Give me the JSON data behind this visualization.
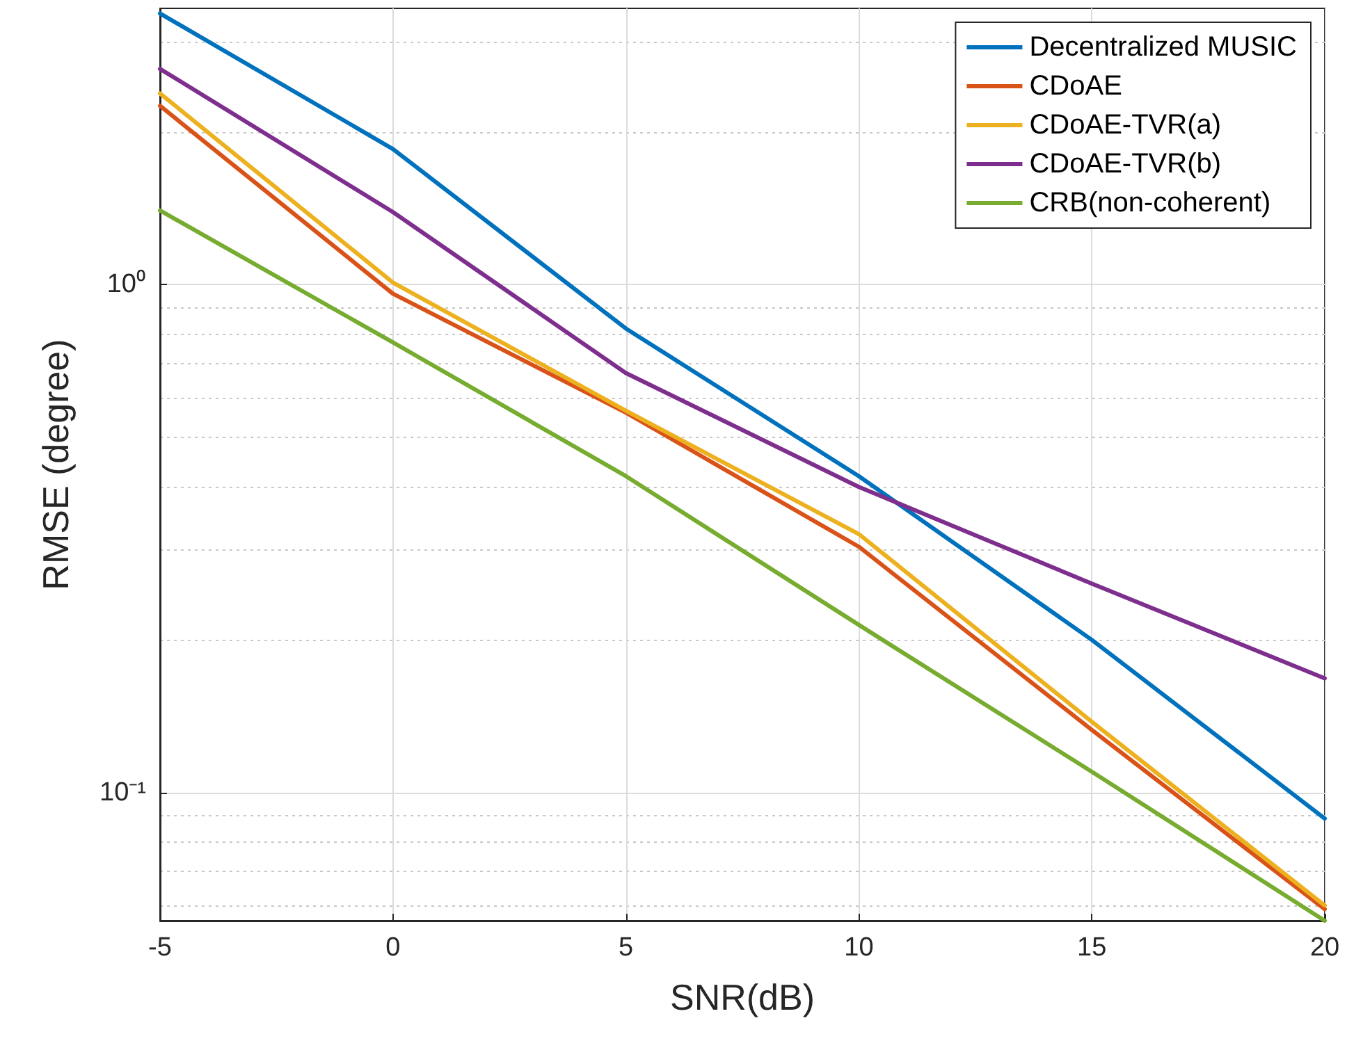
{
  "chart_data": {
    "type": "line",
    "xlabel": "SNR(dB)",
    "ylabel": "RMSE (degree)",
    "log": "y",
    "grid": true,
    "legend": "top right",
    "marker": "none",
    "line_style": "solid",
    "x": [
      -5,
      0,
      5,
      10,
      15,
      20
    ],
    "xlim": [
      -5,
      20
    ],
    "xticks": [
      -5,
      0,
      5,
      10,
      15,
      20
    ],
    "ylim": [
      0.056,
      3.5
    ],
    "yticks": [
      {
        "value": 0.06,
        "label": null
      },
      {
        "value": 0.07,
        "label": null
      },
      {
        "value": 0.08,
        "label": null
      },
      {
        "value": 0.09,
        "label": null
      },
      {
        "value": 0.1,
        "label": "10⁻¹"
      },
      {
        "value": 0.2,
        "label": null
      },
      {
        "value": 0.3,
        "label": null
      },
      {
        "value": 0.4,
        "label": null
      },
      {
        "value": 0.5,
        "label": null
      },
      {
        "value": 0.6,
        "label": null
      },
      {
        "value": 0.7,
        "label": null
      },
      {
        "value": 0.8,
        "label": null
      },
      {
        "value": 0.9,
        "label": null
      },
      {
        "value": 1,
        "label": "10⁰"
      },
      {
        "value": 2,
        "label": null
      },
      {
        "value": 3,
        "label": null
      }
    ],
    "series": [
      {
        "name": "Decentralized MUSIC",
        "color": "#0072bd",
        "values": [
          3.42,
          1.85,
          0.82,
          0.42,
          0.2,
          0.089
        ]
      },
      {
        "name": "CDoAE",
        "color": "#d95319",
        "values": [
          2.25,
          0.96,
          0.56,
          0.305,
          0.133,
          0.059
        ]
      },
      {
        "name": "CDoAE-TVR(a)",
        "color": "#edb120",
        "values": [
          2.38,
          1.01,
          0.565,
          0.323,
          0.138,
          0.06
        ]
      },
      {
        "name": "CDoAE-TVR(b)",
        "color": "#7e2f8e",
        "values": [
          2.66,
          1.39,
          0.67,
          0.4,
          0.258,
          0.168
        ]
      },
      {
        "name": "CRB(non-coherent)",
        "color": "#77ac30",
        "values": [
          1.4,
          0.77,
          0.42,
          0.214,
          0.11,
          0.056
        ]
      }
    ]
  }
}
